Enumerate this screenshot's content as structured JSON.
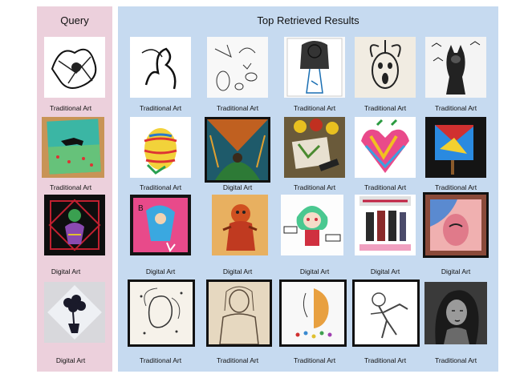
{
  "header": {
    "query_title": "Query",
    "results_title": "Top Retrieved Results"
  },
  "rows": [
    {
      "query_label": "Traditional Art",
      "results": [
        "Traditional Art",
        "Traditional Art",
        "Traditional Art",
        "Traditional Art",
        "Traditional Art"
      ]
    },
    {
      "query_label": "Traditional Art",
      "results": [
        "Traditional Art",
        "Digital Art",
        "Traditional Art",
        "Traditional Art",
        "Traditional Art"
      ]
    },
    {
      "query_label": "Digital Art",
      "results": [
        "Digital Art",
        "Digital Art",
        "Digital Art",
        "Digital Art",
        "Digital Art"
      ]
    },
    {
      "query_label": "Digital Art",
      "results": [
        "Traditional Art",
        "Traditional Art",
        "Traditional Art",
        "Traditional Art",
        "Traditional Art"
      ]
    }
  ]
}
